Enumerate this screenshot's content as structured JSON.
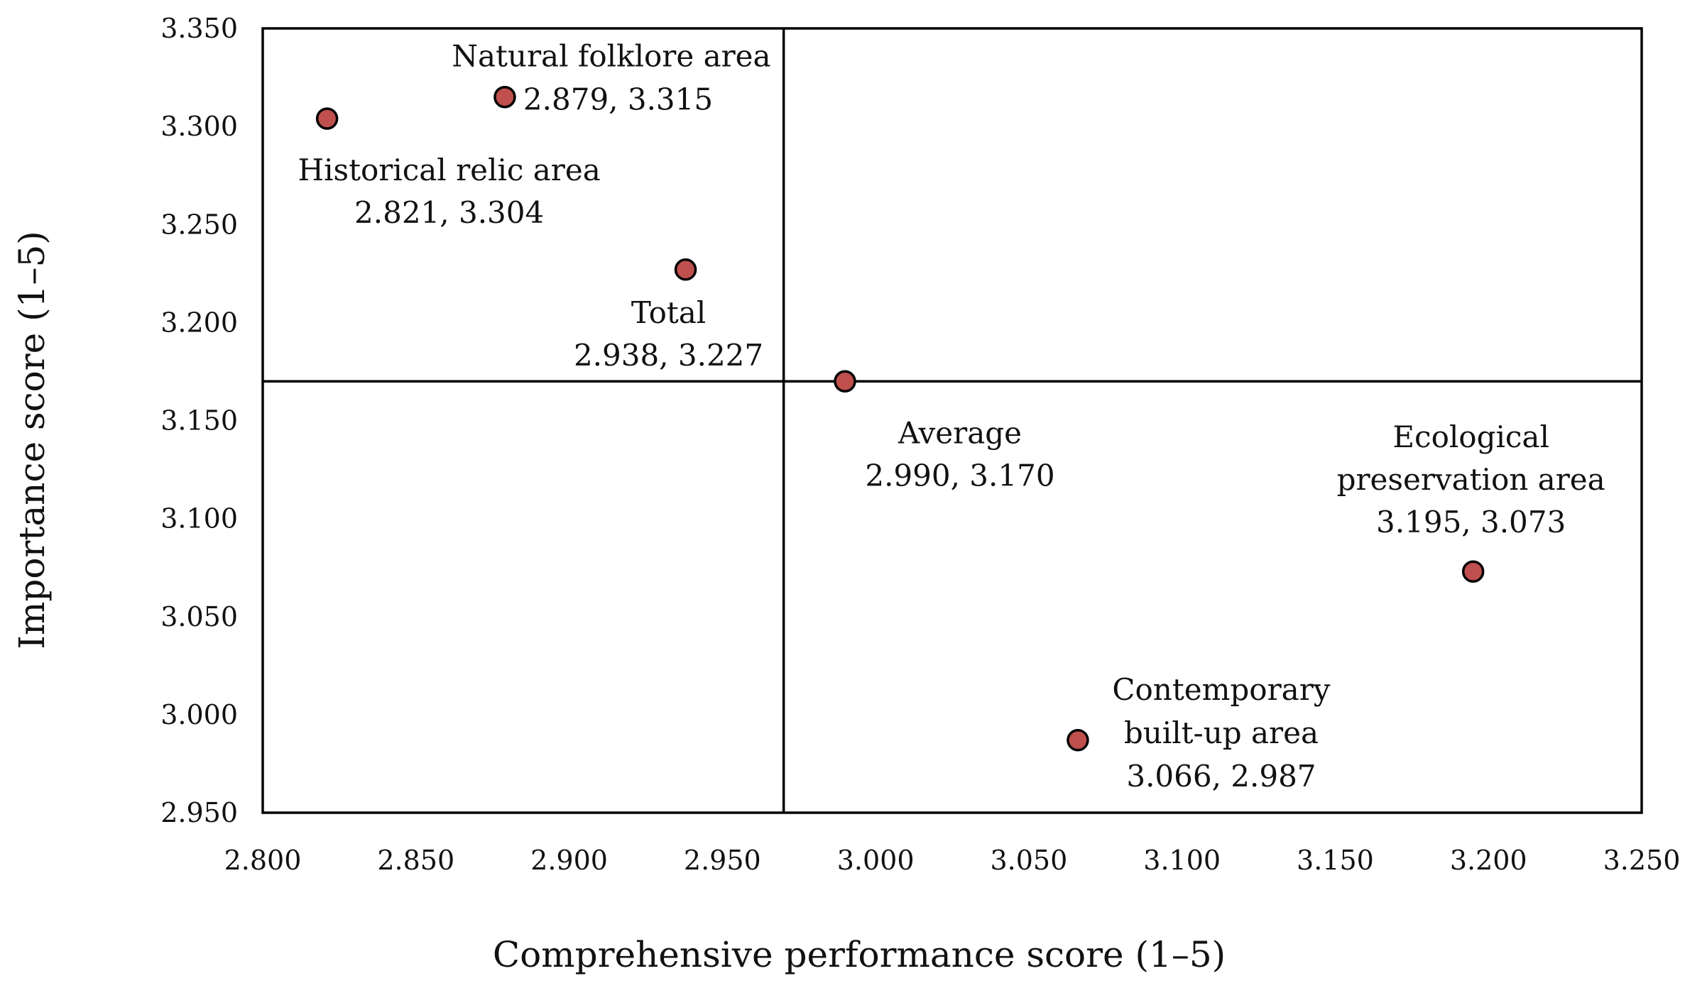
{
  "chart_data": {
    "type": "scatter",
    "xlabel": "Comprehensive performance score (1–5)",
    "ylabel": "Importance score (1–5)",
    "xlim": [
      2.8,
      3.25
    ],
    "ylim": [
      2.95,
      3.35
    ],
    "x_ticks": [
      "2.800",
      "2.850",
      "2.900",
      "2.950",
      "3.000",
      "3.050",
      "3.100",
      "3.150",
      "3.200",
      "3.250"
    ],
    "y_ticks": [
      "2.950",
      "3.000",
      "3.050",
      "3.100",
      "3.150",
      "3.200",
      "3.250",
      "3.300",
      "3.350"
    ],
    "x_tick_values": [
      2.8,
      2.85,
      2.9,
      2.95,
      3.0,
      3.05,
      3.1,
      3.15,
      3.2,
      3.25
    ],
    "y_tick_values": [
      2.95,
      3.0,
      3.05,
      3.1,
      3.15,
      3.2,
      3.25,
      3.3,
      3.35
    ],
    "reference_lines": {
      "x": 2.97,
      "y": 3.17
    },
    "marker_color": "#c0504d",
    "points": [
      {
        "name": "Natural folklore area",
        "x": 2.879,
        "y": 3.315,
        "label_lines": [
          "Natural folklore area",
          "2.879, 3.315"
        ]
      },
      {
        "name": "Historical relic area",
        "x": 2.821,
        "y": 3.304,
        "label_lines": [
          "Historical relic area",
          "2.821, 3.304"
        ]
      },
      {
        "name": "Total",
        "x": 2.938,
        "y": 3.227,
        "label_lines": [
          "Total",
          "2.938, 3.227"
        ]
      },
      {
        "name": "Average",
        "x": 2.99,
        "y": 3.17,
        "label_lines": [
          "Average",
          "2.990, 3.170"
        ]
      },
      {
        "name": "Ecological preservation area",
        "x": 3.195,
        "y": 3.073,
        "label_lines": [
          "Ecological",
          "preservation area",
          "3.195, 3.073"
        ]
      },
      {
        "name": "Contemporary built-up area",
        "x": 3.066,
        "y": 2.987,
        "label_lines": [
          "Contemporary",
          "built-up area",
          "3.066, 2.987"
        ]
      }
    ]
  }
}
